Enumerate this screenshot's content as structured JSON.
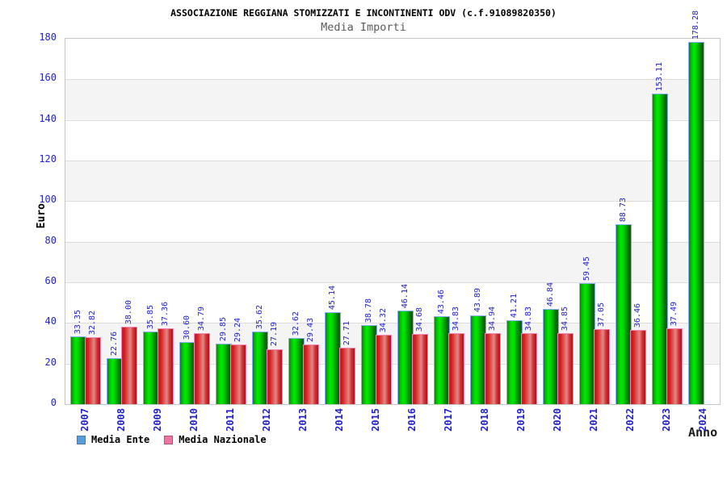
{
  "chart_data": {
    "type": "bar",
    "title": "ASSOCIAZIONE REGGIANA STOMIZZATI E INCONTINENTI ODV (c.f.91089820350)",
    "subtitle": "Media Importi",
    "xlabel": "Anno",
    "ylabel": "Euro",
    "ylim": [
      0,
      180
    ],
    "ytick_step": 20,
    "yticks": [
      0,
      20,
      40,
      60,
      80,
      100,
      120,
      140,
      160,
      180
    ],
    "grid": "horizontal gridlines with alternating white/gray bands every 20",
    "legend_position": "bottom-left",
    "value_label_color": "#2222cc",
    "axis_tick_color": "#2222cc",
    "categories": [
      "2007",
      "2008",
      "2009",
      "2010",
      "2011",
      "2012",
      "2013",
      "2014",
      "2015",
      "2016",
      "2017",
      "2018",
      "2019",
      "2020",
      "2021",
      "2022",
      "2023",
      "2024"
    ],
    "series": [
      {
        "name": "Media Ente",
        "bar_color": "#00cc00",
        "legend_fill": "#579bdb",
        "legend_border": "#4a7aa6",
        "values": [
          33.35,
          22.76,
          35.85,
          30.6,
          29.85,
          35.62,
          32.62,
          45.14,
          38.78,
          46.14,
          43.46,
          43.89,
          41.21,
          46.84,
          59.45,
          88.73,
          153.11,
          178.28
        ]
      },
      {
        "name": "Media Nazionale",
        "bar_color": "#dd2222",
        "legend_fill": "#ee74a4",
        "legend_border": "#b05578",
        "values": [
          32.82,
          38.0,
          37.36,
          34.79,
          29.24,
          27.19,
          29.43,
          27.71,
          34.32,
          34.68,
          34.83,
          34.94,
          34.83,
          34.85,
          37.05,
          36.46,
          37.49,
          null
        ]
      }
    ]
  }
}
